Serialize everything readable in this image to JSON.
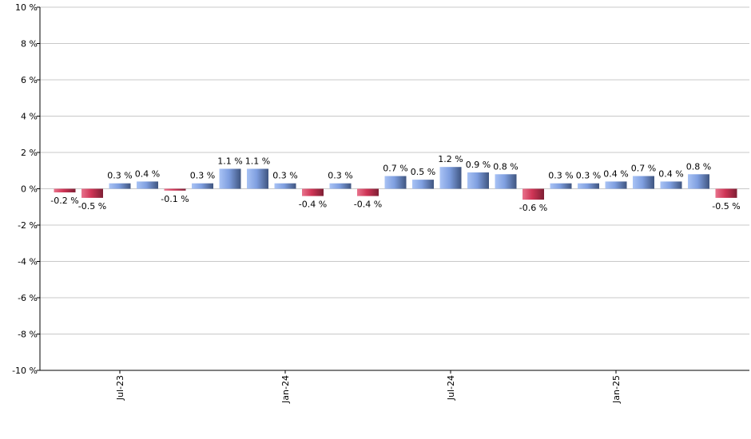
{
  "chart_data": {
    "type": "bar",
    "title": "",
    "xlabel": "",
    "ylabel": "",
    "ylim": [
      -10,
      10
    ],
    "y_ticks": [
      10,
      8,
      6,
      4,
      2,
      0,
      -2,
      -4,
      -6,
      -8,
      -10
    ],
    "y_tick_labels": [
      "10 %",
      "8 %",
      "6 %",
      "4 %",
      "2 %",
      "0 %",
      "-2 %",
      "-4 %",
      "-6 %",
      "-8 %",
      "-10 %"
    ],
    "grid": true,
    "x_tick_labels": [
      {
        "label": "Jul-23",
        "index": 2
      },
      {
        "label": "Jan-24",
        "index": 8
      },
      {
        "label": "Jul-24",
        "index": 14
      },
      {
        "label": "Jan-25",
        "index": 20
      }
    ],
    "values": [
      -0.2,
      -0.5,
      0.3,
      0.4,
      -0.1,
      0.3,
      1.1,
      1.1,
      0.3,
      -0.4,
      0.3,
      -0.4,
      0.7,
      0.5,
      1.2,
      0.9,
      0.8,
      -0.6,
      0.3,
      0.3,
      0.4,
      0.7,
      0.4,
      0.8,
      -0.5
    ],
    "labels": [
      "-0.2 %",
      "-0.5 %",
      "0.3 %",
      "0.4 %",
      "-0.1 %",
      "0.3 %",
      "1.1 %",
      "1.1 %",
      "0.3 %",
      "-0.4 %",
      "0.3 %",
      "-0.4 %",
      "0.7 %",
      "0.5 %",
      "1.2 %",
      "0.9 %",
      "0.8 %",
      "-0.6 %",
      "0.3 %",
      "0.3 %",
      "0.4 %",
      "0.7 %",
      "0.4 %",
      "0.8 %",
      "-0.5 %"
    ],
    "colors": {
      "positive": "#8aa9e8",
      "negative": "#d2405f",
      "grid": "#c8c8c8",
      "axis": "#000000"
    }
  }
}
